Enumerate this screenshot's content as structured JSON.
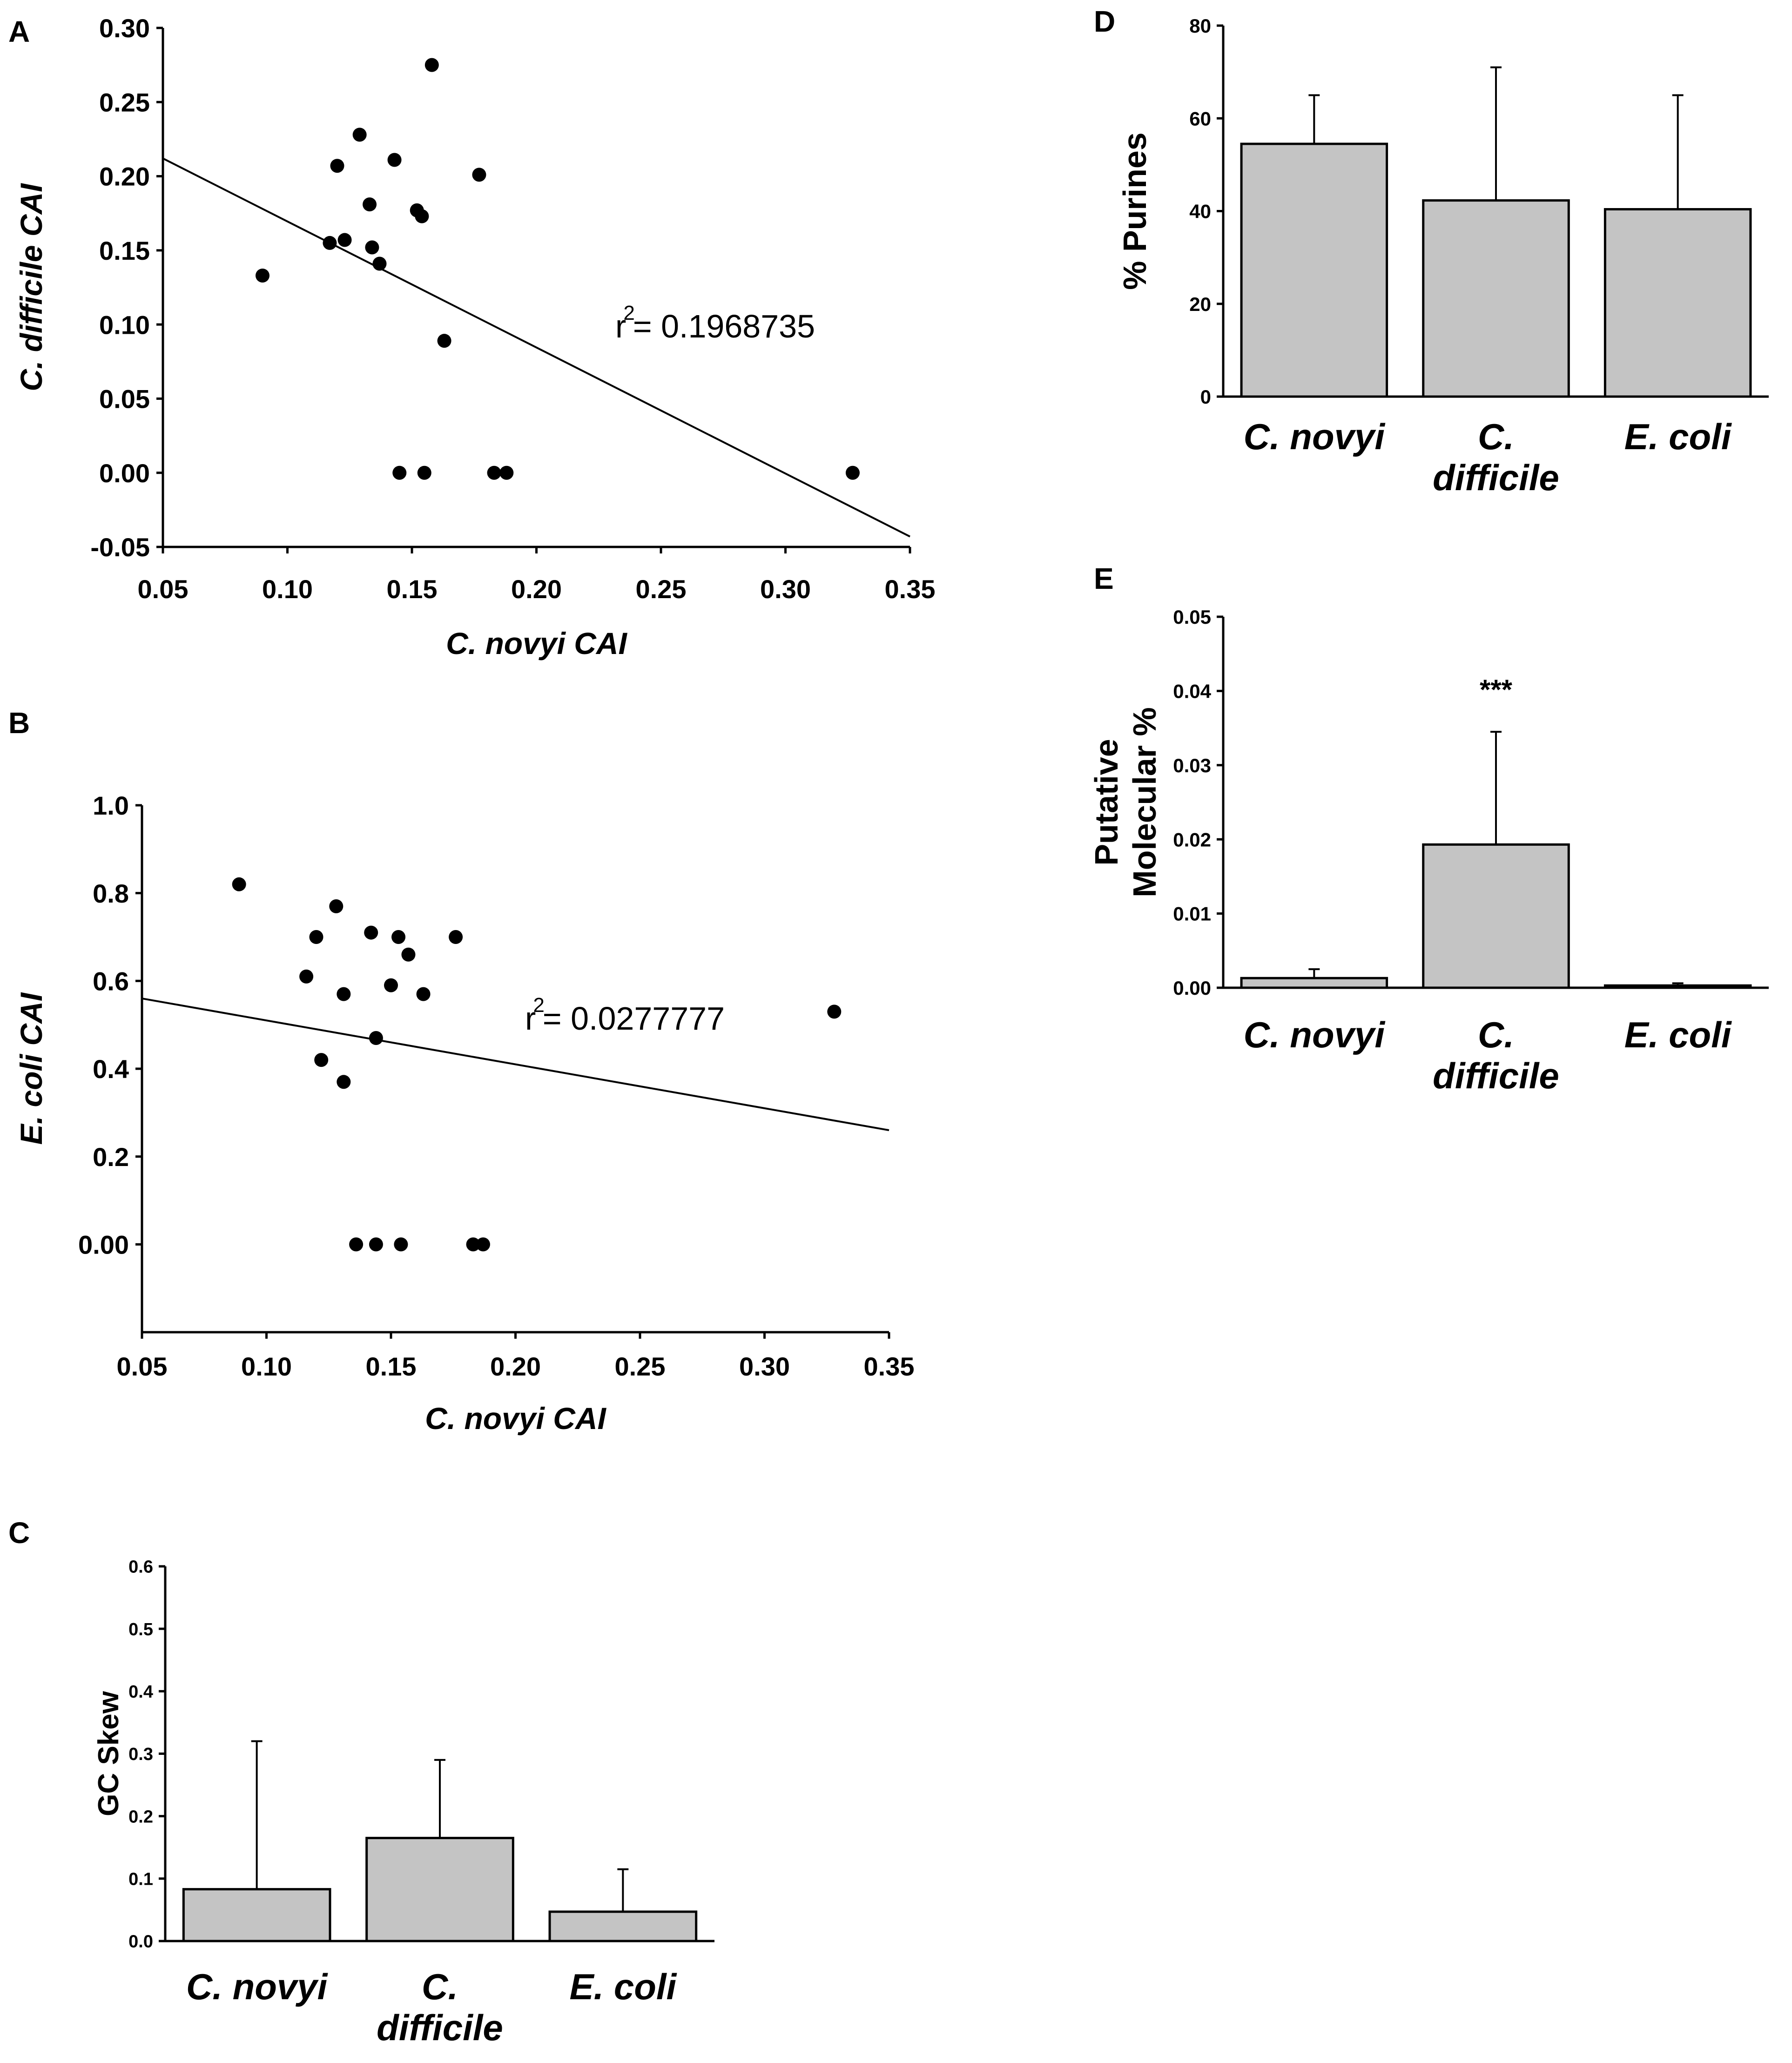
{
  "chart_data": [
    {
      "panel": "A",
      "type": "scatter",
      "xlabel": "C. novyi CAI",
      "ylabel": "C. difficile CAI",
      "xlim": [
        0.05,
        0.35
      ],
      "ylim": [
        -0.05,
        0.3
      ],
      "xticks": [
        "0.05",
        "0.10",
        "0.15",
        "0.20",
        "0.25",
        "0.30",
        "0.35"
      ],
      "yticks": [
        "-0.05",
        "0.00",
        "0.05",
        "0.10",
        "0.15",
        "0.20",
        "0.25",
        "0.30"
      ],
      "points": [
        {
          "x": 0.158,
          "y": 0.275
        },
        {
          "x": 0.129,
          "y": 0.228
        },
        {
          "x": 0.12,
          "y": 0.207
        },
        {
          "x": 0.143,
          "y": 0.211
        },
        {
          "x": 0.177,
          "y": 0.201
        },
        {
          "x": 0.133,
          "y": 0.181
        },
        {
          "x": 0.152,
          "y": 0.177
        },
        {
          "x": 0.154,
          "y": 0.173
        },
        {
          "x": 0.117,
          "y": 0.155
        },
        {
          "x": 0.123,
          "y": 0.157
        },
        {
          "x": 0.134,
          "y": 0.152
        },
        {
          "x": 0.137,
          "y": 0.141
        },
        {
          "x": 0.09,
          "y": 0.133
        },
        {
          "x": 0.163,
          "y": 0.089
        },
        {
          "x": 0.145,
          "y": 0.0
        },
        {
          "x": 0.155,
          "y": 0.0
        },
        {
          "x": 0.183,
          "y": 0.0
        },
        {
          "x": 0.188,
          "y": 0.0
        },
        {
          "x": 0.327,
          "y": 0.0
        }
      ],
      "regression": {
        "x": [
          0.05,
          0.35
        ],
        "y": [
          0.212,
          -0.043
        ]
      },
      "annotation": {
        "r_label": "r",
        "sup": "2",
        "text": "= 0.1968735"
      }
    },
    {
      "panel": "B",
      "type": "scatter",
      "xlabel": "C. novyi CAI",
      "ylabel": "E. coli CAI",
      "xlim": [
        0.05,
        0.35
      ],
      "ylim": [
        -0.2,
        1.0
      ],
      "xticks": [
        "0.05",
        "0.10",
        "0.15",
        "0.20",
        "0.25",
        "0.30",
        "0.35"
      ],
      "yticks": [
        "0.00",
        "0.2",
        "0.4",
        "0.6",
        "0.8",
        "1.0"
      ],
      "points": [
        {
          "x": 0.089,
          "y": 0.82
        },
        {
          "x": 0.128,
          "y": 0.77
        },
        {
          "x": 0.12,
          "y": 0.7
        },
        {
          "x": 0.142,
          "y": 0.71
        },
        {
          "x": 0.153,
          "y": 0.7
        },
        {
          "x": 0.176,
          "y": 0.7
        },
        {
          "x": 0.157,
          "y": 0.66
        },
        {
          "x": 0.116,
          "y": 0.61
        },
        {
          "x": 0.15,
          "y": 0.59
        },
        {
          "x": 0.131,
          "y": 0.57
        },
        {
          "x": 0.163,
          "y": 0.57
        },
        {
          "x": 0.328,
          "y": 0.53
        },
        {
          "x": 0.144,
          "y": 0.47
        },
        {
          "x": 0.122,
          "y": 0.42
        },
        {
          "x": 0.131,
          "y": 0.37
        },
        {
          "x": 0.136,
          "y": 0.0
        },
        {
          "x": 0.144,
          "y": 0.0
        },
        {
          "x": 0.154,
          "y": 0.0
        },
        {
          "x": 0.183,
          "y": 0.0
        },
        {
          "x": 0.187,
          "y": 0.0
        }
      ],
      "regression": {
        "x": [
          0.05,
          0.35
        ],
        "y": [
          0.56,
          0.26
        ]
      },
      "annotation": {
        "r_label": "r",
        "sup": "2",
        "text": "= 0.0277777"
      }
    },
    {
      "panel": "C",
      "type": "bar",
      "ylabel": "GC Skew",
      "categories": [
        [
          "C. novyi"
        ],
        [
          "C.",
          "difficile"
        ],
        [
          "E. coli"
        ]
      ],
      "values": [
        0.083,
        0.165,
        0.047
      ],
      "errors_upper": [
        0.32,
        0.29,
        0.115
      ],
      "ylim": [
        0,
        0.6
      ],
      "yticks": [
        "0.0",
        "0.1",
        "0.2",
        "0.3",
        "0.4",
        "0.5",
        "0.6"
      ]
    },
    {
      "panel": "D",
      "type": "bar",
      "ylabel": "% Purines",
      "categories": [
        [
          "C. novyi"
        ],
        [
          "C.",
          "difficile"
        ],
        [
          "E. coli"
        ]
      ],
      "values": [
        54.5,
        42.3,
        40.4
      ],
      "errors_upper": [
        65.0,
        71.0,
        65.0
      ],
      "ylim": [
        0,
        80
      ],
      "yticks": [
        "0",
        "20",
        "40",
        "60",
        "80"
      ]
    },
    {
      "panel": "E",
      "type": "bar",
      "ylabel": [
        "Putative",
        "Molecular %"
      ],
      "categories": [
        [
          "C. novyi"
        ],
        [
          "C.",
          "difficile"
        ],
        [
          "E. coli"
        ]
      ],
      "values": [
        0.0013,
        0.0193,
        0.0003
      ],
      "errors_upper": [
        0.0025,
        0.0345,
        0.0006
      ],
      "ylim": [
        0,
        0.05
      ],
      "yticks": [
        "0.00",
        "0.01",
        "0.02",
        "0.03",
        "0.04",
        "0.05"
      ],
      "significance": "***"
    }
  ]
}
